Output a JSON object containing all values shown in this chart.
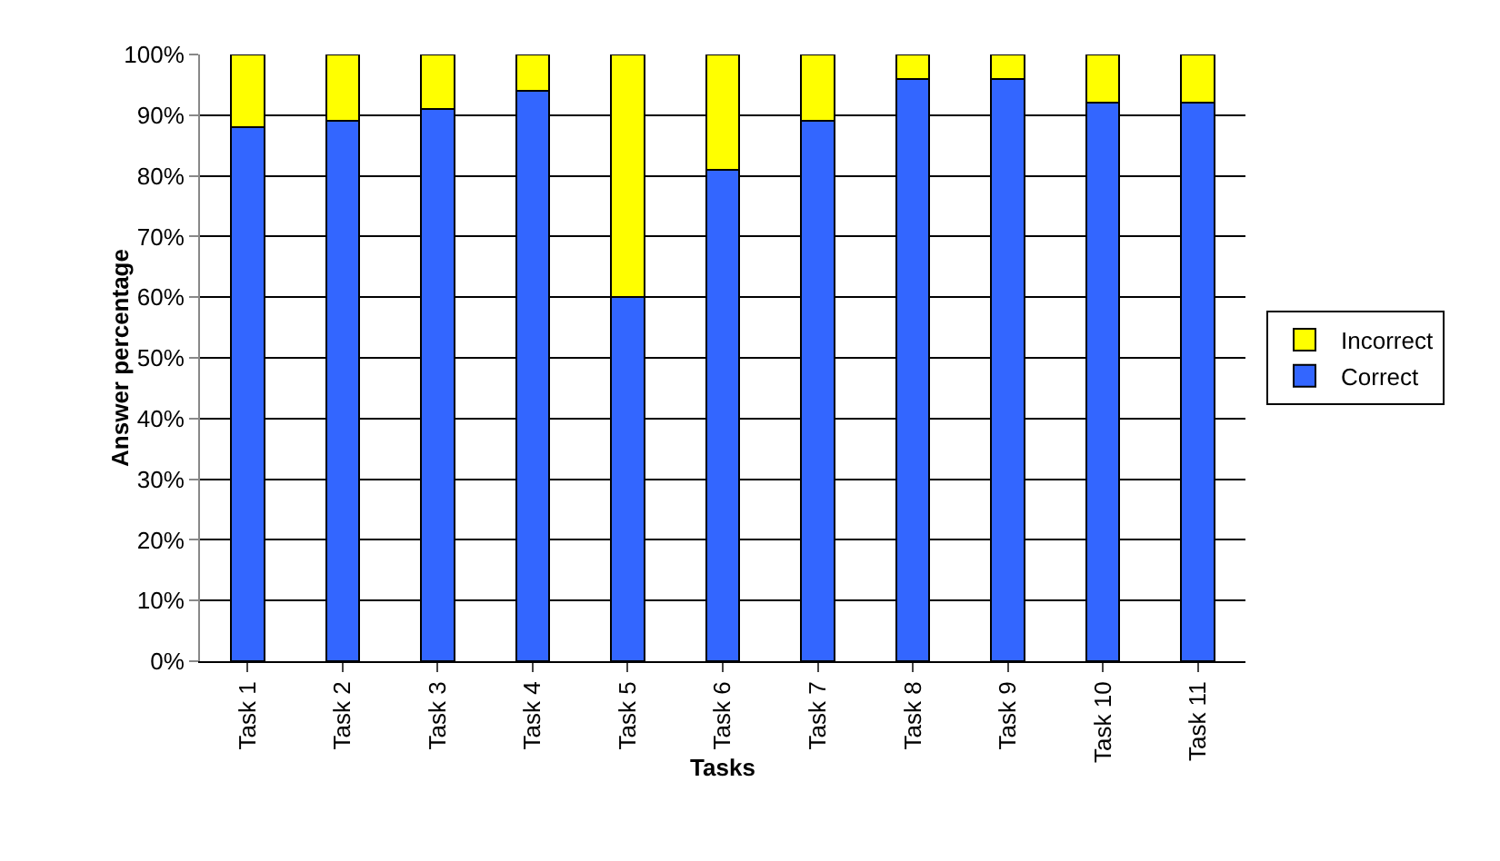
{
  "chart_data": {
    "type": "bar",
    "stacked": true,
    "xlabel": "Tasks",
    "ylabel": "Answer percentage",
    "categories": [
      "Task 1",
      "Task 2",
      "Task 3",
      "Task 4",
      "Task 5",
      "Task 6",
      "Task 7",
      "Task 8",
      "Task 9",
      "Task 10",
      "Task 11"
    ],
    "series": [
      {
        "name": "Correct",
        "color": "#3366ff",
        "values": [
          88,
          89,
          91,
          94,
          60,
          81,
          89,
          96,
          96,
          92,
          92
        ]
      },
      {
        "name": "Incorrect",
        "color": "#ffff00",
        "values": [
          12,
          11,
          9,
          6,
          40,
          19,
          11,
          4,
          4,
          8,
          8
        ]
      }
    ],
    "ylim": [
      0,
      100
    ],
    "yticks": [
      {
        "value": 0,
        "label": "0%"
      },
      {
        "value": 10,
        "label": "10%"
      },
      {
        "value": 20,
        "label": "20%"
      },
      {
        "value": 30,
        "label": "30%"
      },
      {
        "value": 40,
        "label": "40%"
      },
      {
        "value": 50,
        "label": "50%"
      },
      {
        "value": 60,
        "label": "60%"
      },
      {
        "value": 70,
        "label": "70%"
      },
      {
        "value": 80,
        "label": "80%"
      },
      {
        "value": 90,
        "label": "90%"
      },
      {
        "value": 100,
        "label": "100%"
      }
    ],
    "grid": "y",
    "legend": "right"
  }
}
